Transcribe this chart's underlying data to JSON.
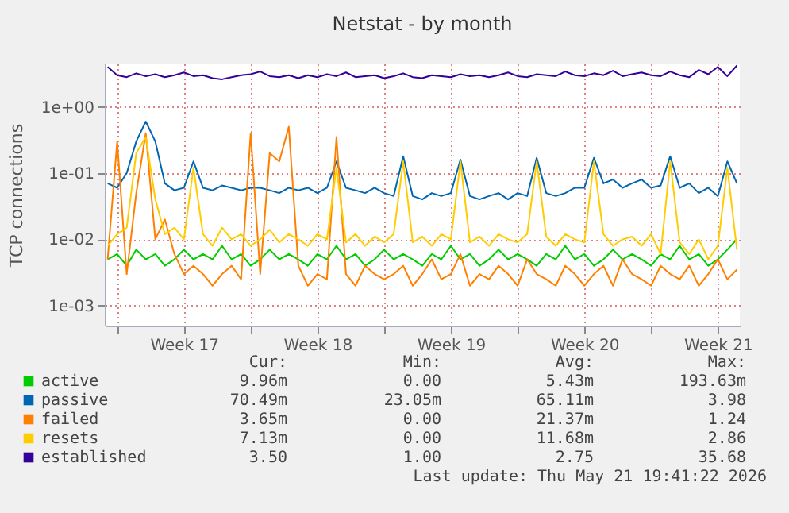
{
  "chart_data": {
    "type": "line",
    "title": "Netstat - by month",
    "ylabel": "TCP connections",
    "categories": [
      null,
      null,
      null,
      null,
      null,
      null,
      null,
      null,
      "Week 17",
      null,
      null,
      null,
      null,
      null,
      null,
      null,
      null,
      null,
      null,
      null,
      null,
      null,
      "Week 18",
      null,
      null,
      null,
      null,
      null,
      null,
      null,
      null,
      null,
      null,
      null,
      null,
      null,
      "Week 19",
      null,
      null,
      null,
      null,
      null,
      null,
      null,
      null,
      null,
      null,
      null,
      null,
      null,
      "Week 20",
      null,
      null,
      null,
      null,
      null,
      null,
      null,
      null,
      null,
      null,
      null,
      null,
      null,
      "Week 21",
      null,
      null
    ],
    "series": [
      {
        "name": "active",
        "color": "#00cc00",
        "values": [
          0.005,
          0.006,
          0.004,
          0.007,
          0.005,
          0.006,
          0.004,
          0.005,
          0.007,
          0.005,
          0.006,
          0.005,
          0.008,
          0.005,
          0.006,
          0.004,
          0.005,
          0.007,
          0.005,
          0.006,
          0.005,
          0.004,
          0.006,
          0.005,
          0.008,
          0.005,
          0.006,
          0.004,
          0.005,
          0.007,
          0.005,
          0.006,
          0.005,
          0.004,
          0.006,
          0.005,
          0.008,
          0.005,
          0.006,
          0.004,
          0.005,
          0.007,
          0.005,
          0.006,
          0.005,
          0.004,
          0.006,
          0.005,
          0.008,
          0.005,
          0.006,
          0.004,
          0.005,
          0.007,
          0.005,
          0.006,
          0.005,
          0.004,
          0.006,
          0.005,
          0.008,
          0.005,
          0.006,
          0.004,
          0.005,
          0.007,
          0.01
        ]
      },
      {
        "name": "passive",
        "color": "#0066b3",
        "values": [
          0.07,
          0.06,
          0.1,
          0.3,
          0.6,
          0.3,
          0.07,
          0.055,
          0.06,
          0.15,
          0.06,
          0.055,
          0.065,
          0.06,
          0.055,
          0.06,
          0.06,
          0.055,
          0.05,
          0.06,
          0.055,
          0.06,
          0.05,
          0.06,
          0.15,
          0.06,
          0.055,
          0.05,
          0.06,
          0.05,
          0.045,
          0.18,
          0.045,
          0.04,
          0.05,
          0.045,
          0.05,
          0.16,
          0.045,
          0.04,
          0.045,
          0.05,
          0.04,
          0.05,
          0.045,
          0.17,
          0.05,
          0.045,
          0.05,
          0.06,
          0.06,
          0.17,
          0.07,
          0.08,
          0.06,
          0.07,
          0.08,
          0.06,
          0.065,
          0.18,
          0.06,
          0.07,
          0.05,
          0.06,
          0.045,
          0.15,
          0.07
        ]
      },
      {
        "name": "failed",
        "color": "#ff8000",
        "values": [
          0.005,
          0.3,
          0.003,
          0.05,
          0.4,
          0.01,
          0.02,
          0.006,
          0.003,
          0.004,
          0.003,
          0.002,
          0.003,
          0.004,
          0.0025,
          0.4,
          0.003,
          0.2,
          0.15,
          0.5,
          0.004,
          0.002,
          0.003,
          0.0025,
          0.35,
          0.003,
          0.002,
          0.004,
          0.003,
          0.0025,
          0.003,
          0.004,
          0.002,
          0.003,
          0.005,
          0.0025,
          0.003,
          0.006,
          0.002,
          0.003,
          0.0025,
          0.004,
          0.003,
          0.002,
          0.005,
          0.003,
          0.0025,
          0.002,
          0.004,
          0.003,
          0.002,
          0.003,
          0.004,
          0.002,
          0.005,
          0.003,
          0.0025,
          0.002,
          0.004,
          0.003,
          0.0025,
          0.004,
          0.002,
          0.003,
          0.005,
          0.0025,
          0.0035
        ]
      },
      {
        "name": "resets",
        "color": "#ffcc00",
        "values": [
          0.008,
          0.012,
          0.015,
          0.2,
          0.35,
          0.04,
          0.012,
          0.015,
          0.01,
          0.12,
          0.012,
          0.008,
          0.015,
          0.01,
          0.012,
          0.008,
          0.01,
          0.014,
          0.009,
          0.012,
          0.01,
          0.008,
          0.012,
          0.01,
          0.12,
          0.009,
          0.012,
          0.008,
          0.011,
          0.009,
          0.012,
          0.15,
          0.009,
          0.011,
          0.008,
          0.012,
          0.01,
          0.15,
          0.009,
          0.011,
          0.008,
          0.012,
          0.01,
          0.009,
          0.012,
          0.15,
          0.011,
          0.008,
          0.012,
          0.01,
          0.009,
          0.15,
          0.012,
          0.008,
          0.01,
          0.011,
          0.008,
          0.012,
          0.006,
          0.15,
          0.009,
          0.006,
          0.01,
          0.005,
          0.008,
          0.12,
          0.007
        ]
      },
      {
        "name": "established",
        "color": "#330099",
        "values": [
          4.0,
          3.0,
          2.8,
          3.2,
          2.9,
          3.1,
          2.8,
          3.0,
          3.3,
          2.9,
          3.0,
          2.7,
          2.6,
          2.8,
          3.0,
          3.1,
          3.4,
          2.9,
          2.8,
          3.0,
          2.7,
          3.0,
          2.8,
          3.1,
          2.9,
          3.3,
          2.8,
          2.9,
          3.0,
          2.7,
          2.9,
          3.2,
          2.8,
          2.7,
          3.0,
          2.9,
          2.8,
          3.1,
          2.9,
          3.0,
          2.8,
          3.0,
          3.3,
          2.9,
          2.8,
          3.1,
          3.0,
          2.9,
          3.4,
          3.0,
          2.9,
          3.2,
          3.0,
          3.5,
          2.9,
          3.1,
          3.3,
          3.0,
          2.9,
          3.4,
          3.0,
          2.8,
          3.6,
          3.1,
          4.0,
          2.9,
          4.2
        ]
      }
    ],
    "ylim": [
      0.0005,
      4.5
    ],
    "yticks": [
      {
        "value": 0.001,
        "label": "1e-03"
      },
      {
        "value": 0.01,
        "label": "1e-02"
      },
      {
        "value": 0.1,
        "label": "1e-01"
      },
      {
        "value": 1,
        "label": "1e+00"
      }
    ],
    "log": true,
    "grid": true,
    "legend": "bottom",
    "line_style": "solid",
    "annotations": [
      "Cur:",
      "Min:",
      "Avg:",
      "Max:",
      "9.96m",
      "0.00",
      "5.43m",
      "193.63m",
      "70.49m",
      "23.05m",
      "65.11m",
      "3.98",
      "3.65m",
      "0.00",
      "21.37m",
      "1.24",
      "7.13m",
      "0.00",
      "11.68m",
      "2.86",
      "3.50",
      "1.00",
      "2.75",
      "35.68",
      "Last update: Thu May 21 19:41:22 2026"
    ]
  }
}
